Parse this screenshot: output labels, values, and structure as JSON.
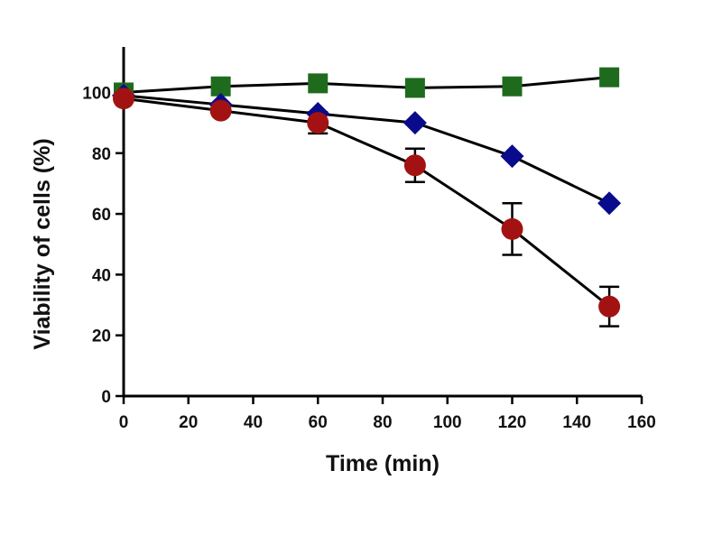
{
  "chart_data": {
    "type": "line",
    "title": "",
    "xlabel": "Time (min)",
    "ylabel": "Viability of cells (%)",
    "xlim": [
      0,
      160
    ],
    "ylim": [
      0,
      115
    ],
    "xticks": [
      0,
      20,
      40,
      60,
      80,
      100,
      120,
      140,
      160
    ],
    "yticks": [
      0,
      20,
      40,
      60,
      80,
      100
    ],
    "grid": false,
    "legend": "none",
    "x": [
      0,
      30,
      60,
      90,
      120,
      150
    ],
    "series": [
      {
        "marker": "square",
        "color": "#1e6b1e",
        "values": [
          100,
          102,
          103,
          101.5,
          102,
          105
        ],
        "errors": [
          0,
          0,
          0,
          0,
          0,
          0
        ]
      },
      {
        "marker": "diamond",
        "color": "#0a0a8c",
        "values": [
          99,
          96,
          93,
          90,
          79,
          63.5
        ],
        "errors": [
          0,
          0,
          0,
          0,
          0,
          0
        ]
      },
      {
        "marker": "circle",
        "color": "#a31212",
        "values": [
          98,
          94,
          90,
          76,
          55,
          29.5
        ],
        "errors": [
          0,
          0,
          3.5,
          5.5,
          8.5,
          6.5
        ]
      }
    ]
  }
}
